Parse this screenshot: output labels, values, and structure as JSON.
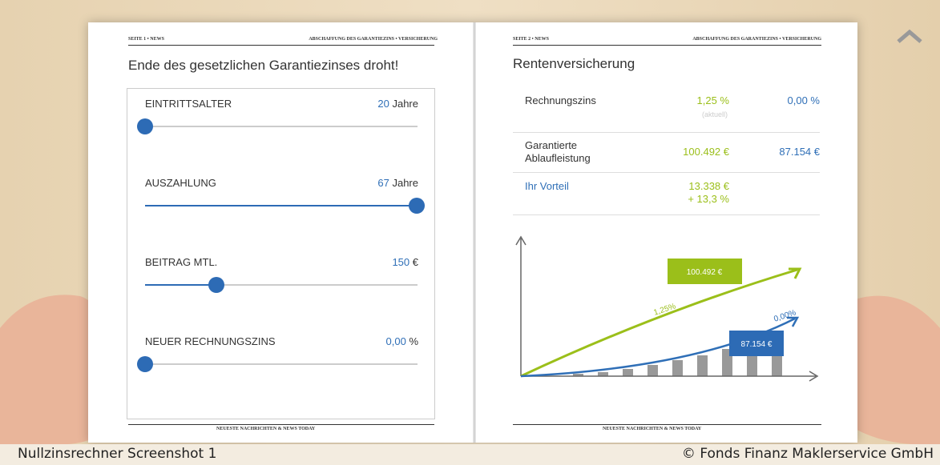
{
  "left_page": {
    "header": {
      "left": "SEITE 1 • NEWS",
      "right": "ABSCHAFFUNG DES GARANTIEZINS • VERSICHERUNG"
    },
    "title": "Ende des gesetzlichen Garantiezinses droht!",
    "sliders": [
      {
        "label": "EINTRITTSALTER",
        "value": "20",
        "unit": "Jahre"
      },
      {
        "label": "AUSZAHLUNG",
        "value": "67",
        "unit": "Jahre"
      },
      {
        "label": "BEITRAG MTL.",
        "value": "150",
        "unit": "€"
      },
      {
        "label": "NEUER RECHNUNGSZINS",
        "value": "0,00",
        "unit": "%"
      }
    ],
    "footer": "NEUESTE NACHRICHTEN & NEWS TODAY"
  },
  "right_page": {
    "header": {
      "left": "SEITE 2 • NEWS",
      "right": "ABSCHAFFUNG DES GARANTIEZINS • VERSICHERUNG"
    },
    "title": "Rentenversicherung",
    "table": {
      "rows": [
        [
          "Rechnungszins",
          "1,25 %",
          "(aktuell)",
          "0,00 %"
        ],
        [
          "Garantierte Ablaufleistung",
          "100.492 €",
          "87.154 €"
        ],
        [
          "Ihr Vorteil",
          "13.338 €",
          "+ 13,3 %"
        ]
      ]
    },
    "graphic": {
      "green_box": "100.492 €",
      "green_rate": "1,25%",
      "blue_rate": "0,00%",
      "blue_box": "87.154 €"
    },
    "footer": "NEUESTE NACHRICHTEN & NEWS TODAY"
  },
  "caption": {
    "left": "Nullzinsrechner Screenshot 1",
    "right": "© Fonds Finanz Maklerservice GmbH"
  }
}
